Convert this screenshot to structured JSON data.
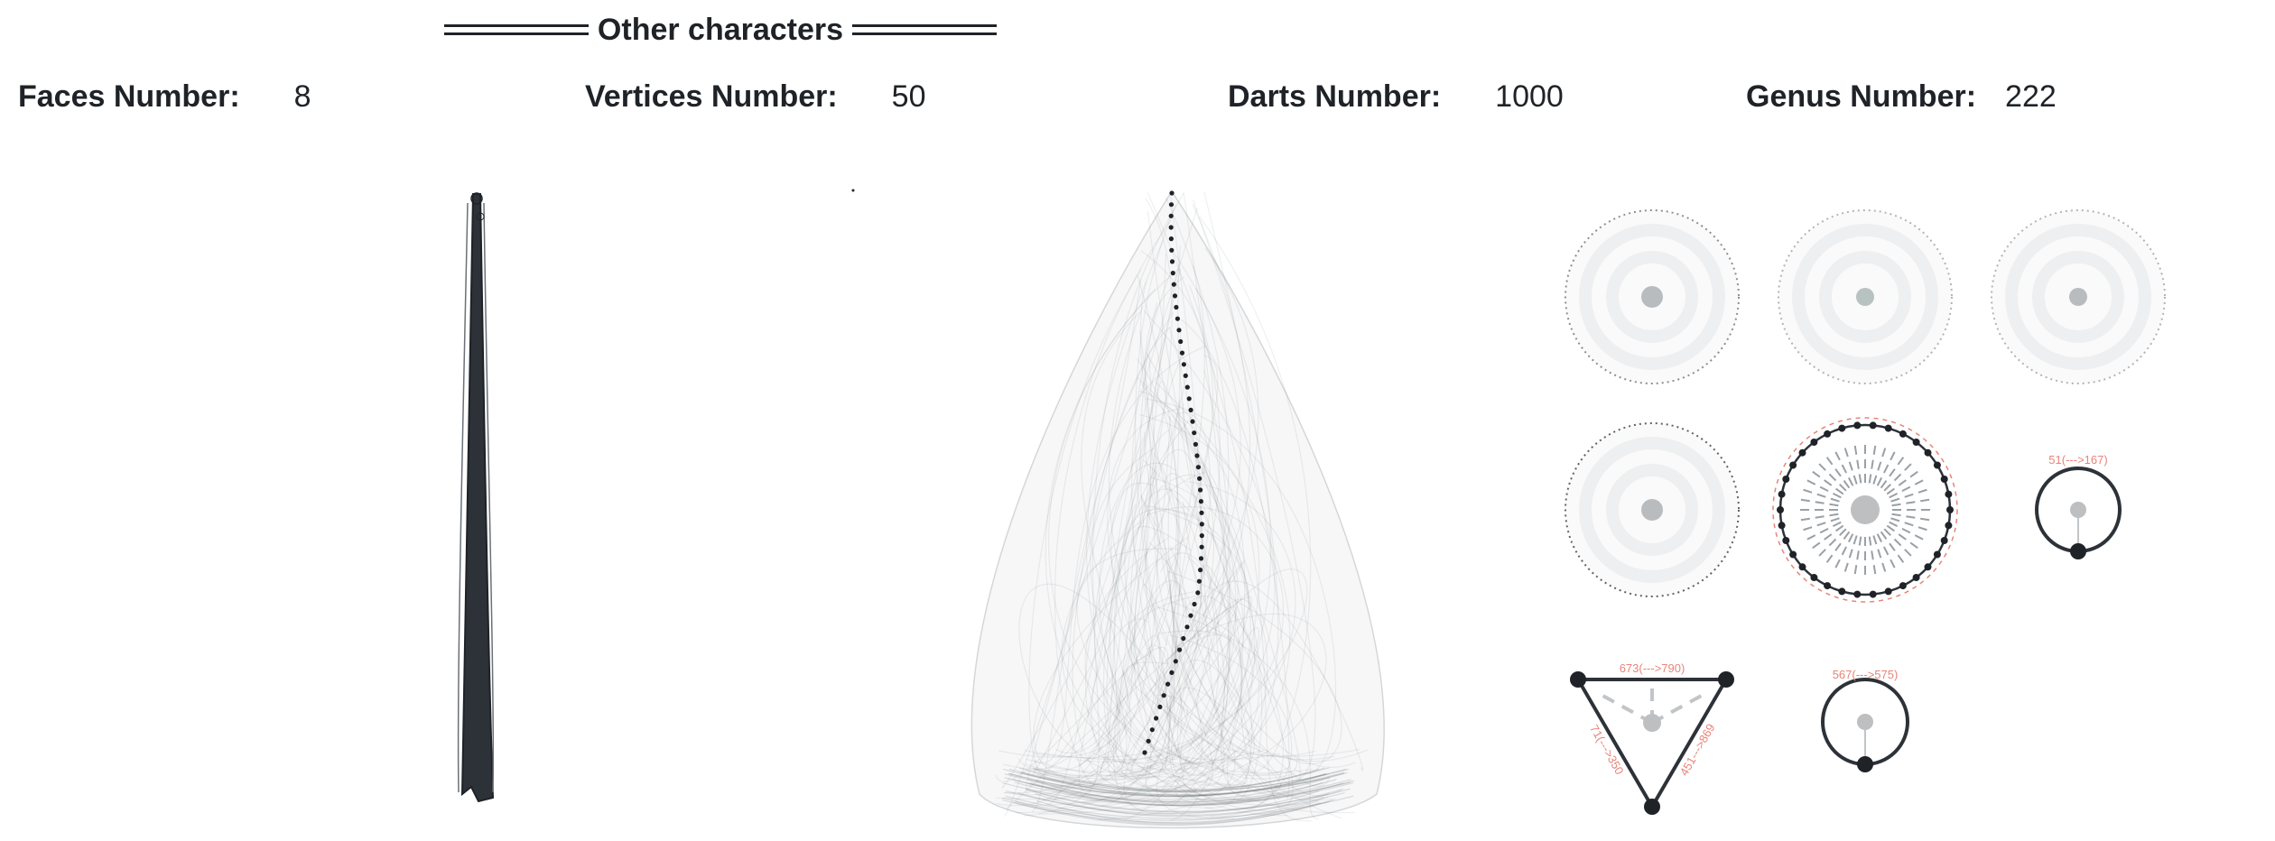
{
  "section_title": "Other characters",
  "stats": {
    "faces": {
      "label": "Faces Number:",
      "value": "8"
    },
    "vertices": {
      "label": "Vertices Number:",
      "value": "50"
    },
    "darts": {
      "label": "Darts Number:",
      "value": "1000"
    },
    "genus": {
      "label": "Genus Number:",
      "value": "222"
    }
  },
  "face_labels": {
    "loop_face": "51(--->167)",
    "triangle_top": "673(--->790)",
    "triangle_right": "451--->869",
    "triangle_left": "71(--->350",
    "small_face": "567(--->575)"
  },
  "colors": {
    "text": "#1f2328",
    "edge": "#2d3238",
    "faint": "#c9cdd1",
    "accent": "#e8847a"
  }
}
